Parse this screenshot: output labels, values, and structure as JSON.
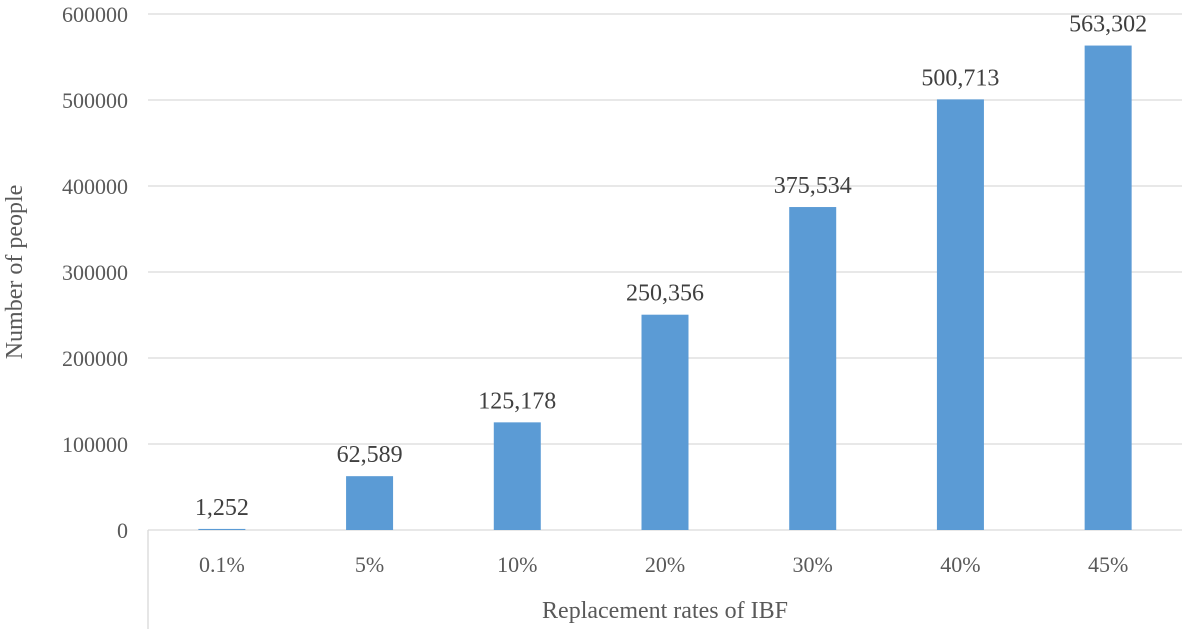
{
  "chart_data": {
    "type": "bar",
    "categories": [
      "0.1%",
      "5%",
      "10%",
      "20%",
      "30%",
      "40%",
      "45%"
    ],
    "values": [
      1252,
      62589,
      125178,
      250356,
      375534,
      500713,
      563302
    ],
    "data_labels": [
      "1,252",
      "62,589",
      "125,178",
      "250,356",
      "375,534",
      "500,713",
      "563,302"
    ],
    "title": "",
    "xlabel": "Replacement rates of IBF",
    "ylabel": "Number of people",
    "ylim": [
      0,
      600000
    ],
    "yticks": [
      0,
      100000,
      200000,
      300000,
      400000,
      500000,
      600000
    ],
    "ytick_labels": [
      "0",
      "100000",
      "200000",
      "300000",
      "400000",
      "500000",
      "600000"
    ],
    "grid": true,
    "legend": "none",
    "colors": {
      "bar": "#5b9bd5",
      "grid": "#d9d9d9",
      "text": "#595959",
      "label": "#404040"
    }
  }
}
